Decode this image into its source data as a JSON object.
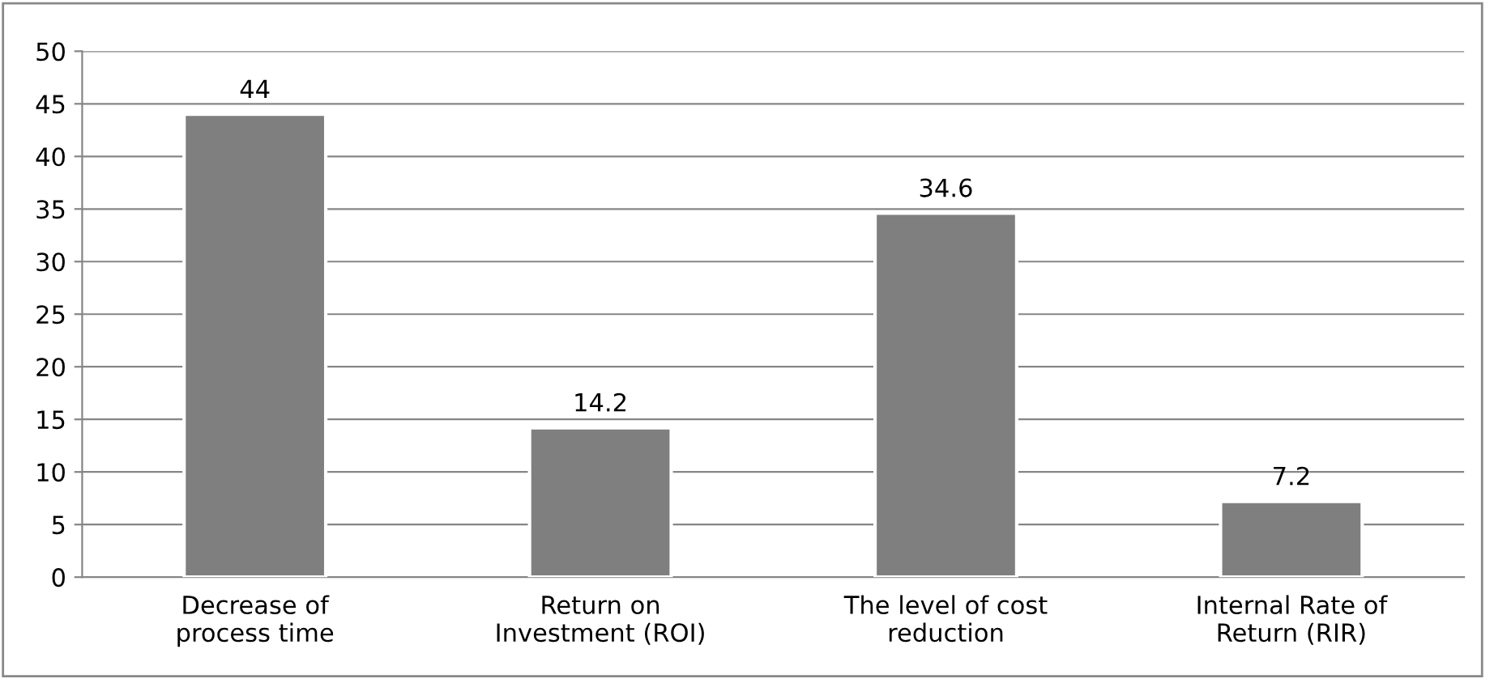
{
  "chart_data": {
    "type": "bar",
    "categories": [
      "Decrease of\nprocess time",
      "Return on\nInvestment (ROI)",
      "The level of cost\nreduction",
      "Internal Rate of\nReturn (RIR)"
    ],
    "values": [
      44,
      14.2,
      34.6,
      7.2
    ],
    "color": "#7f7f7f",
    "ylim": [
      0,
      50
    ],
    "yticks": [
      0,
      5,
      10,
      15,
      20,
      25,
      30,
      35,
      40,
      45,
      50
    ],
    "grid": "y",
    "data_labels": true
  }
}
